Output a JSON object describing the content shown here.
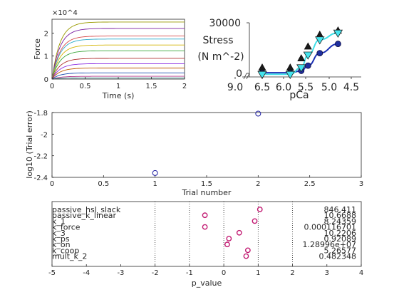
{
  "chart_data": [
    {
      "type": "line",
      "xlabel": "Time (s)",
      "ylabel": "Force",
      "y_exponent": "×10^4",
      "xlim": [
        0,
        2
      ],
      "ylim": [
        0,
        2.6
      ],
      "xticks": [
        "0",
        "0.5",
        "1",
        "1.5",
        "2"
      ],
      "yticks": [
        "0",
        "1",
        "2"
      ],
      "plateaus": [
        2.48,
        2.2,
        1.87,
        1.74,
        1.48,
        1.23,
        0.9,
        0.67,
        0.48,
        0.27,
        0.12,
        0.05
      ],
      "colors": [
        "#9a9a00",
        "#7b1fa2",
        "#d84a4a",
        "#29a9c9",
        "#d4b400",
        "#3aa63a",
        "#b03030",
        "#8a2be2",
        "#c05a00",
        "#1f4fb0",
        "#b0358a",
        "#2a7a7a"
      ]
    },
    {
      "type": "scatter",
      "title": "Stress",
      "ylabel": "(N m^-2)",
      "xlabel": "pCa",
      "ytop_label": "30000",
      "ybottom_label": "0",
      "x_reversed": true,
      "xlim": [
        9.0,
        4.5
      ],
      "xticks": [
        "9.0",
        "6.5",
        "6.0",
        "5.5",
        "5.0",
        "4.5"
      ],
      "series": [
        {
          "marker": "circle",
          "color": "#1f2f9f",
          "line_color": "#1a2fb4",
          "points": [
            [
              6.5,
              400
            ],
            [
              5.85,
              400
            ],
            [
              5.6,
              1500
            ],
            [
              5.45,
              4600
            ],
            [
              5.2,
              12000
            ],
            [
              4.8,
              17500
            ]
          ]
        },
        {
          "marker": "triangle",
          "color": "#1a1a1a",
          "points": [
            [
              6.5,
              3500
            ],
            [
              5.85,
              3500
            ],
            [
              5.6,
              9000
            ],
            [
              5.45,
              16000
            ],
            [
              5.2,
              23000
            ],
            [
              4.8,
              25500
            ]
          ]
        },
        {
          "marker": "triangle-down",
          "color": "#44e4ee",
          "line_color": "#3fe0e8",
          "points": [
            [
              6.5,
              -500
            ],
            [
              5.85,
              -500
            ],
            [
              5.6,
              3500
            ],
            [
              5.45,
              11000
            ],
            [
              5.2,
              20000
            ],
            [
              4.8,
              24000
            ]
          ]
        }
      ]
    },
    {
      "type": "scatter",
      "xlabel": "Trial number",
      "ylabel": "log10 (Trial error)",
      "xlim": [
        0,
        3
      ],
      "ylim": [
        -2.4,
        -1.8
      ],
      "xticks": [
        "0",
        "0.5",
        "1",
        "1.5",
        "2",
        "2.5",
        "3"
      ],
      "yticks": [
        "-1.8",
        "-2",
        "-2.2",
        "-2.4"
      ],
      "points": [
        [
          1,
          -2.36
        ],
        [
          2,
          -1.81
        ]
      ],
      "marker_color": "#1a1aa0"
    },
    {
      "type": "scatter",
      "xlabel": "p_value",
      "xlim": [
        -5,
        4
      ],
      "xticks": [
        "-5",
        "-4",
        "-3",
        "-2",
        "-1",
        "0",
        "1",
        "2",
        "3",
        "4"
      ],
      "dotted_lines_at": [
        -2,
        -1,
        0,
        1,
        2
      ],
      "parameters": [
        {
          "name": "passive_hsl_slack",
          "value": "846.411",
          "p": 1.05
        },
        {
          "name": "passive_k_linear",
          "value": "10.6688",
          "p": -0.55
        },
        {
          "name": "k_1",
          "value": "8.24359",
          "p": 0.9
        },
        {
          "name": "k_force",
          "value": "0.000116701",
          "p": -0.55
        },
        {
          "name": "k_3",
          "value": "10.2206",
          "p": 0.45
        },
        {
          "name": "k_ps",
          "value": "0.92089",
          "p": 0.15
        },
        {
          "name": "k_on",
          "value": "1.28996e+07",
          "p": 0.1
        },
        {
          "name": "k_coop",
          "value": "5.26577",
          "p": 0.7
        },
        {
          "name": "mult_k_2",
          "value": "0.482348",
          "p": 0.65
        }
      ],
      "marker_color": "#c21a72"
    }
  ]
}
